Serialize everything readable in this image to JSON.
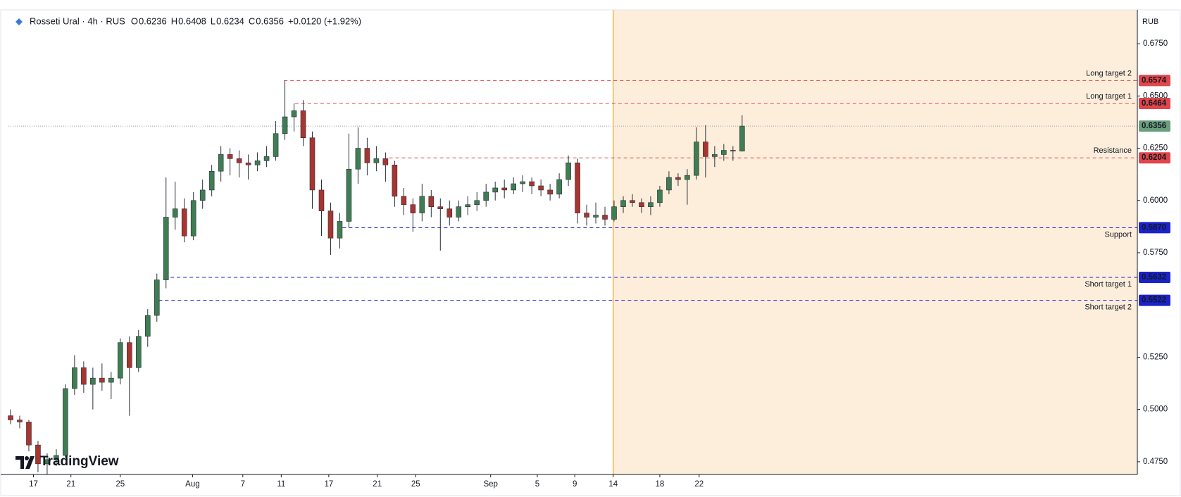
{
  "chart_data": {
    "type": "candlestick",
    "title": "Rosseti Ural · 4h · RUS",
    "header_values": [
      {
        "label": "O",
        "value": "0.6236"
      },
      {
        "label": "H",
        "value": "0.6408"
      },
      {
        "label": "L",
        "value": "0.6234"
      },
      {
        "label": "C",
        "value": "0.6356"
      }
    ],
    "change": "+0.0120 (+1.92%)",
    "currency": "RUB",
    "brand": "TradingView",
    "up_color": "#3f7d52",
    "down_color": "#a83530",
    "ohlc": [
      [
        0.497,
        0.5,
        0.493,
        0.495
      ],
      [
        0.495,
        0.497,
        0.491,
        0.494
      ],
      [
        0.494,
        0.495,
        0.48,
        0.483
      ],
      [
        0.483,
        0.485,
        0.47,
        0.474
      ],
      [
        0.474,
        0.479,
        0.469,
        0.476
      ],
      [
        0.476,
        0.481,
        0.473,
        0.478
      ],
      [
        0.478,
        0.512,
        0.477,
        0.51
      ],
      [
        0.51,
        0.526,
        0.507,
        0.52
      ],
      [
        0.52,
        0.523,
        0.508,
        0.512
      ],
      [
        0.512,
        0.52,
        0.5,
        0.515
      ],
      [
        0.515,
        0.522,
        0.509,
        0.513
      ],
      [
        0.513,
        0.518,
        0.505,
        0.515
      ],
      [
        0.515,
        0.534,
        0.512,
        0.532
      ],
      [
        0.532,
        0.535,
        0.497,
        0.52
      ],
      [
        0.52,
        0.538,
        0.518,
        0.535
      ],
      [
        0.535,
        0.548,
        0.53,
        0.545
      ],
      [
        0.545,
        0.565,
        0.542,
        0.562
      ],
      [
        0.562,
        0.611,
        0.558,
        0.592
      ],
      [
        0.592,
        0.609,
        0.586,
        0.596
      ],
      [
        0.596,
        0.601,
        0.58,
        0.583
      ],
      [
        0.583,
        0.604,
        0.581,
        0.6
      ],
      [
        0.6,
        0.61,
        0.596,
        0.605
      ],
      [
        0.605,
        0.617,
        0.602,
        0.614
      ],
      [
        0.614,
        0.626,
        0.609,
        0.622
      ],
      [
        0.622,
        0.625,
        0.612,
        0.62
      ],
      [
        0.62,
        0.624,
        0.611,
        0.618
      ],
      [
        0.618,
        0.622,
        0.61,
        0.617
      ],
      [
        0.617,
        0.623,
        0.614,
        0.619
      ],
      [
        0.619,
        0.626,
        0.616,
        0.621
      ],
      [
        0.621,
        0.638,
        0.619,
        0.632
      ],
      [
        0.632,
        0.6574,
        0.629,
        0.64
      ],
      [
        0.64,
        0.6464,
        0.633,
        0.643
      ],
      [
        0.643,
        0.648,
        0.626,
        0.63
      ],
      [
        0.63,
        0.633,
        0.596,
        0.605
      ],
      [
        0.605,
        0.61,
        0.583,
        0.595
      ],
      [
        0.595,
        0.599,
        0.574,
        0.582
      ],
      [
        0.582,
        0.594,
        0.577,
        0.59
      ],
      [
        0.59,
        0.632,
        0.587,
        0.615
      ],
      [
        0.615,
        0.635,
        0.608,
        0.625
      ],
      [
        0.625,
        0.63,
        0.612,
        0.618
      ],
      [
        0.618,
        0.626,
        0.614,
        0.62
      ],
      [
        0.62,
        0.623,
        0.609,
        0.617
      ],
      [
        0.617,
        0.619,
        0.597,
        0.602
      ],
      [
        0.602,
        0.606,
        0.593,
        0.598
      ],
      [
        0.598,
        0.601,
        0.585,
        0.594
      ],
      [
        0.594,
        0.608,
        0.59,
        0.602
      ],
      [
        0.602,
        0.605,
        0.592,
        0.597
      ],
      [
        0.597,
        0.601,
        0.576,
        0.596
      ],
      [
        0.596,
        0.6,
        0.588,
        0.592
      ],
      [
        0.592,
        0.6,
        0.59,
        0.597
      ],
      [
        0.597,
        0.602,
        0.593,
        0.598
      ],
      [
        0.598,
        0.604,
        0.595,
        0.6
      ],
      [
        0.6,
        0.608,
        0.597,
        0.604
      ],
      [
        0.604,
        0.609,
        0.6,
        0.606
      ],
      [
        0.606,
        0.61,
        0.601,
        0.605
      ],
      [
        0.605,
        0.611,
        0.603,
        0.608
      ],
      [
        0.608,
        0.612,
        0.604,
        0.609
      ],
      [
        0.609,
        0.611,
        0.603,
        0.607
      ],
      [
        0.607,
        0.61,
        0.602,
        0.605
      ],
      [
        0.605,
        0.608,
        0.6,
        0.603
      ],
      [
        0.603,
        0.613,
        0.601,
        0.61
      ],
      [
        0.61,
        0.6215,
        0.607,
        0.618
      ],
      [
        0.618,
        0.62,
        0.589,
        0.594
      ],
      [
        0.594,
        0.598,
        0.588,
        0.592
      ],
      [
        0.592,
        0.599,
        0.589,
        0.593
      ],
      [
        0.593,
        0.597,
        0.588,
        0.591
      ],
      [
        0.591,
        0.6,
        0.59,
        0.597
      ],
      [
        0.597,
        0.602,
        0.594,
        0.6
      ],
      [
        0.6,
        0.603,
        0.597,
        0.599
      ],
      [
        0.599,
        0.601,
        0.594,
        0.597
      ],
      [
        0.597,
        0.602,
        0.593,
        0.599
      ],
      [
        0.599,
        0.607,
        0.597,
        0.605
      ],
      [
        0.605,
        0.614,
        0.603,
        0.611
      ],
      [
        0.611,
        0.613,
        0.607,
        0.61
      ],
      [
        0.61,
        0.615,
        0.598,
        0.612
      ],
      [
        0.612,
        0.635,
        0.61,
        0.628
      ],
      [
        0.628,
        0.636,
        0.611,
        0.621
      ],
      [
        0.621,
        0.626,
        0.616,
        0.622
      ],
      [
        0.622,
        0.627,
        0.619,
        0.624
      ],
      [
        0.624,
        0.626,
        0.619,
        0.6236
      ],
      [
        0.6236,
        0.6408,
        0.6234,
        0.6356
      ]
    ],
    "ylim": [
      0.4689,
      0.6912
    ],
    "yticks": [
      {
        "value": 0.675,
        "label": "0.6750"
      },
      {
        "value": 0.65,
        "label": "0.6500"
      },
      {
        "value": 0.625,
        "label": "0.6250"
      },
      {
        "value": 0.6,
        "label": "0.6000"
      },
      {
        "value": 0.575,
        "label": "0.5750"
      },
      {
        "value": 0.525,
        "label": "0.5250"
      },
      {
        "value": 0.5,
        "label": "0.5000"
      },
      {
        "value": 0.475,
        "label": "0.4750"
      }
    ],
    "xticks": [
      {
        "value": 2.5,
        "label": "17"
      },
      {
        "value": 6.6,
        "label": "21"
      },
      {
        "value": 12.0,
        "label": "25"
      },
      {
        "value": 19.9,
        "label": "Aug"
      },
      {
        "value": 25.4,
        "label": "7"
      },
      {
        "value": 29.6,
        "label": "11"
      },
      {
        "value": 34.8,
        "label": "17"
      },
      {
        "value": 40.1,
        "label": "21"
      },
      {
        "value": 44.3,
        "label": "25"
      },
      {
        "value": 52.5,
        "label": "Sep"
      },
      {
        "value": 57.6,
        "label": "5"
      },
      {
        "value": 61.7,
        "label": "9"
      },
      {
        "value": 65.9,
        "label": "14"
      },
      {
        "value": 71.0,
        "label": "18"
      },
      {
        "value": 75.3,
        "label": "22"
      }
    ],
    "current_price": {
      "value": 0.6356,
      "label": "0.6356",
      "color": "#6a9f7e"
    },
    "levels": [
      {
        "name": "Long target 2",
        "value": 0.6574,
        "label": "0.6574",
        "color": "#e0454a"
      },
      {
        "name": "Long target 1",
        "value": 0.6464,
        "label": "0.6464",
        "color": "#e0454a"
      },
      {
        "name": "Resistance",
        "value": 0.6204,
        "label": "0.6204",
        "color": "#e0454a"
      },
      {
        "name": "Support",
        "value": 0.587,
        "label": "0.5870",
        "color": "#1a22c9"
      },
      {
        "name": "Short target 1",
        "value": 0.5632,
        "label": "0.5632",
        "color": "#1a22c9"
      },
      {
        "name": "Short target 2",
        "value": 0.5522,
        "label": "0.5522",
        "color": "#1a22c9"
      }
    ]
  }
}
